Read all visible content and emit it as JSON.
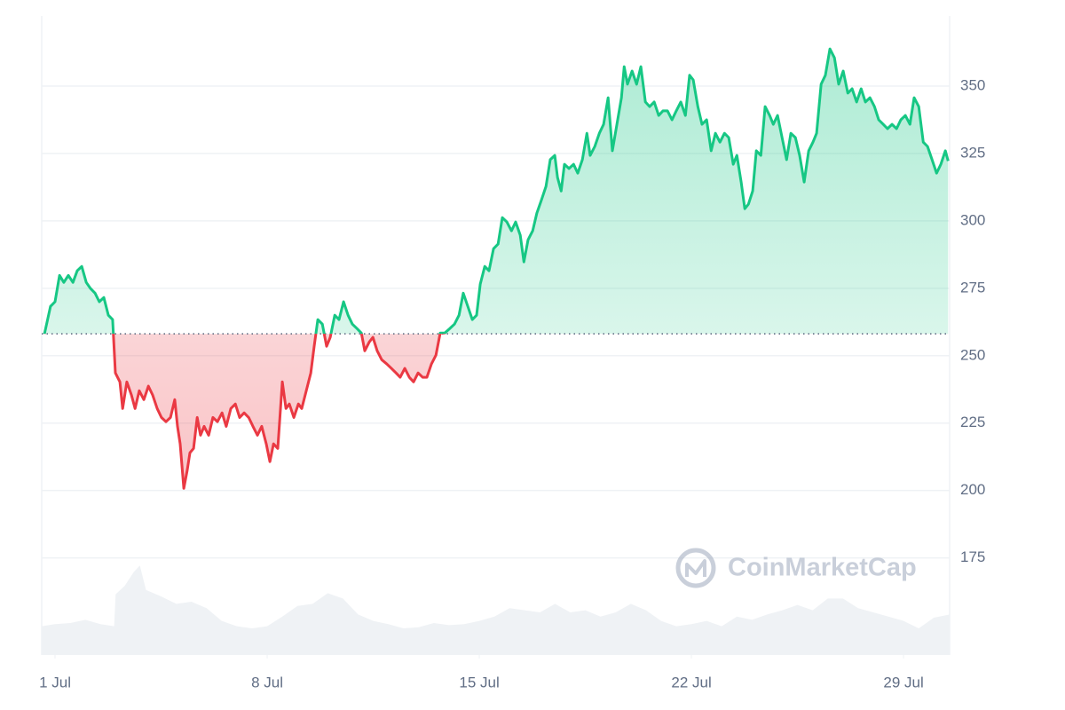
{
  "chart_data": {
    "type": "line",
    "watermark": "CoinMarketCap",
    "x": [
      0.65,
      0.85,
      1.0,
      1.15,
      1.29,
      1.44,
      1.59,
      1.73,
      1.88,
      2.03,
      2.17,
      2.32,
      2.46,
      2.61,
      2.76,
      2.9,
      2.99,
      3.14,
      3.23,
      3.37,
      3.52,
      3.64,
      3.78,
      3.93,
      4.08,
      4.22,
      4.37,
      4.51,
      4.66,
      4.81,
      4.95,
      5.04,
      5.13,
      5.25,
      5.36,
      5.45,
      5.57,
      5.69,
      5.8,
      5.92,
      6.07,
      6.21,
      6.36,
      6.51,
      6.65,
      6.8,
      6.95,
      7.09,
      7.24,
      7.39,
      7.53,
      7.68,
      7.82,
      7.97,
      8.09,
      8.21,
      8.35,
      8.5,
      8.62,
      8.73,
      8.88,
      9.03,
      9.14,
      9.29,
      9.44,
      9.55,
      9.67,
      9.82,
      9.96,
      10.08,
      10.23,
      10.37,
      10.52,
      10.67,
      10.81,
      10.96,
      11.11,
      11.22,
      11.37,
      11.49,
      11.63,
      11.78,
      11.95,
      12.1,
      12.25,
      12.39,
      12.54,
      12.69,
      12.83,
      12.98,
      13.13,
      13.27,
      13.42,
      13.57,
      13.71,
      13.86,
      14.03,
      14.18,
      14.33,
      14.47,
      14.62,
      14.77,
      14.91,
      15.03,
      15.18,
      15.32,
      15.47,
      15.62,
      15.76,
      15.91,
      16.06,
      16.2,
      16.35,
      16.47,
      16.61,
      16.76,
      16.9,
      17.05,
      17.2,
      17.34,
      17.49,
      17.58,
      17.7,
      17.81,
      17.96,
      18.11,
      18.25,
      18.4,
      18.55,
      18.66,
      18.81,
      18.96,
      19.1,
      19.25,
      19.39,
      19.54,
      19.69,
      19.78,
      19.89,
      20.04,
      20.19,
      20.33,
      20.48,
      20.62,
      20.77,
      20.92,
      21.06,
      21.21,
      21.36,
      21.5,
      21.65,
      21.8,
      21.94,
      22.06,
      22.21,
      22.35,
      22.5,
      22.65,
      22.79,
      22.94,
      23.09,
      23.23,
      23.38,
      23.5,
      23.64,
      23.76,
      23.88,
      24.02,
      24.14,
      24.29,
      24.43,
      24.58,
      24.7,
      24.84,
      24.99,
      25.14,
      25.28,
      25.43,
      25.57,
      25.72,
      25.87,
      26.01,
      26.13,
      26.28,
      26.42,
      26.57,
      26.72,
      26.86,
      27.01,
      27.16,
      27.3,
      27.45,
      27.6,
      27.74,
      27.89,
      28.04,
      28.18,
      28.33,
      28.47,
      28.62,
      28.77,
      28.91,
      29.06,
      29.21,
      29.35,
      29.5,
      29.65,
      29.79,
      29.94,
      30.09,
      30.23,
      30.38,
      30.47
    ],
    "values": [
      258.1,
      268.3,
      270.0,
      279.8,
      277.2,
      279.8,
      277.2,
      281.5,
      283.1,
      277.2,
      274.9,
      273.2,
      270.0,
      271.6,
      265.0,
      263.4,
      243.6,
      240.3,
      230.4,
      240.3,
      235.4,
      230.4,
      237.0,
      233.7,
      238.7,
      235.4,
      230.4,
      227.1,
      225.5,
      227.1,
      233.7,
      223.8,
      217.3,
      200.8,
      207.4,
      214.0,
      215.6,
      227.1,
      220.5,
      223.8,
      220.5,
      227.1,
      225.5,
      228.8,
      223.8,
      230.4,
      232.1,
      227.1,
      228.8,
      227.1,
      223.8,
      220.5,
      223.8,
      217.3,
      210.7,
      217.3,
      215.6,
      240.3,
      230.4,
      232.1,
      227.1,
      232.1,
      230.4,
      237.0,
      243.6,
      253.5,
      263.4,
      261.7,
      253.5,
      256.8,
      265.0,
      263.4,
      270.0,
      265.0,
      261.7,
      260.1,
      258.4,
      251.8,
      255.1,
      256.8,
      251.8,
      248.5,
      246.9,
      245.3,
      243.6,
      242.0,
      245.3,
      242.0,
      240.3,
      243.6,
      242.0,
      242.0,
      246.9,
      250.2,
      258.4,
      258.4,
      260.1,
      261.7,
      265.0,
      273.2,
      268.3,
      263.4,
      265.0,
      276.5,
      283.1,
      281.5,
      289.7,
      291.4,
      301.2,
      299.6,
      296.3,
      299.6,
      294.7,
      284.8,
      293.0,
      296.3,
      302.9,
      307.8,
      312.8,
      322.7,
      324.3,
      316.1,
      311.1,
      321.0,
      319.4,
      321.0,
      317.7,
      322.7,
      332.5,
      324.3,
      327.6,
      332.5,
      335.8,
      345.7,
      326.0,
      335.8,
      345.7,
      357.2,
      350.7,
      355.6,
      350.7,
      357.2,
      344.1,
      342.4,
      344.1,
      339.1,
      340.8,
      340.8,
      337.5,
      340.8,
      344.1,
      339.1,
      354.0,
      352.3,
      342.4,
      335.8,
      337.5,
      326.0,
      332.5,
      329.2,
      332.5,
      330.9,
      321.0,
      324.3,
      314.4,
      304.5,
      306.2,
      311.1,
      326.0,
      324.3,
      342.4,
      339.1,
      335.8,
      339.1,
      330.9,
      322.7,
      332.5,
      330.9,
      324.3,
      314.4,
      326.0,
      329.2,
      332.5,
      350.7,
      354.0,
      363.8,
      360.5,
      350.7,
      355.6,
      347.4,
      349.0,
      344.1,
      349.0,
      344.1,
      345.7,
      342.4,
      337.5,
      335.8,
      334.2,
      335.8,
      334.2,
      337.5,
      339.1,
      335.8,
      345.7,
      342.4,
      329.2,
      327.6,
      322.7,
      317.7,
      321.0,
      326.0,
      322.2
    ],
    "color": "#16c784",
    "down_color": "#ea3943",
    "baseline": 258.1,
    "volume": {
      "axis": "y2",
      "color": "#eff2f5",
      "x": [
        0.56,
        1.0,
        1.5,
        2.0,
        2.5,
        2.95,
        3.0,
        3.3,
        3.6,
        3.8,
        4.0,
        4.5,
        5.0,
        5.5,
        6.0,
        6.5,
        7.0,
        7.5,
        8.0,
        8.5,
        9.0,
        9.5,
        10.0,
        10.5,
        11.0,
        11.5,
        12.0,
        12.5,
        13.0,
        13.5,
        14.0,
        14.5,
        15.0,
        15.5,
        16.0,
        16.5,
        17.0,
        17.5,
        18.0,
        18.5,
        19.0,
        19.5,
        20.0,
        20.5,
        21.0,
        21.5,
        22.0,
        22.5,
        23.0,
        23.5,
        24.0,
        24.5,
        25.0,
        25.5,
        26.0,
        26.5,
        27.0,
        27.5,
        28.0,
        28.5,
        29.0,
        29.5,
        30.0,
        30.52
      ],
      "values": [
        27,
        29,
        30,
        33,
        29,
        27,
        57,
        65,
        78,
        84,
        61,
        55,
        48,
        50,
        44,
        32,
        27,
        25,
        27,
        36,
        46,
        48,
        58,
        53,
        38,
        32,
        29,
        25,
        26,
        30,
        28,
        29,
        32,
        36,
        44,
        42,
        40,
        48,
        40,
        42,
        36,
        40,
        48,
        42,
        32,
        27,
        29,
        32,
        27,
        36,
        33,
        38,
        42,
        47,
        42,
        53,
        53,
        44,
        40,
        36,
        32,
        25,
        35,
        38
      ]
    },
    "xlim": [
      0.56,
      30.52
    ],
    "ylim": [
      139,
      376
    ],
    "y2lim": [
      0,
      100
    ],
    "xticks": [
      {
        "value": 1,
        "label": "1 Jul"
      },
      {
        "value": 8,
        "label": "8 Jul"
      },
      {
        "value": 15,
        "label": "15 Jul"
      },
      {
        "value": 22,
        "label": "22 Jul"
      },
      {
        "value": 29,
        "label": "29 Jul"
      }
    ],
    "yticks": [
      175,
      200,
      225,
      250,
      275,
      300,
      325,
      350
    ],
    "grid": true
  }
}
